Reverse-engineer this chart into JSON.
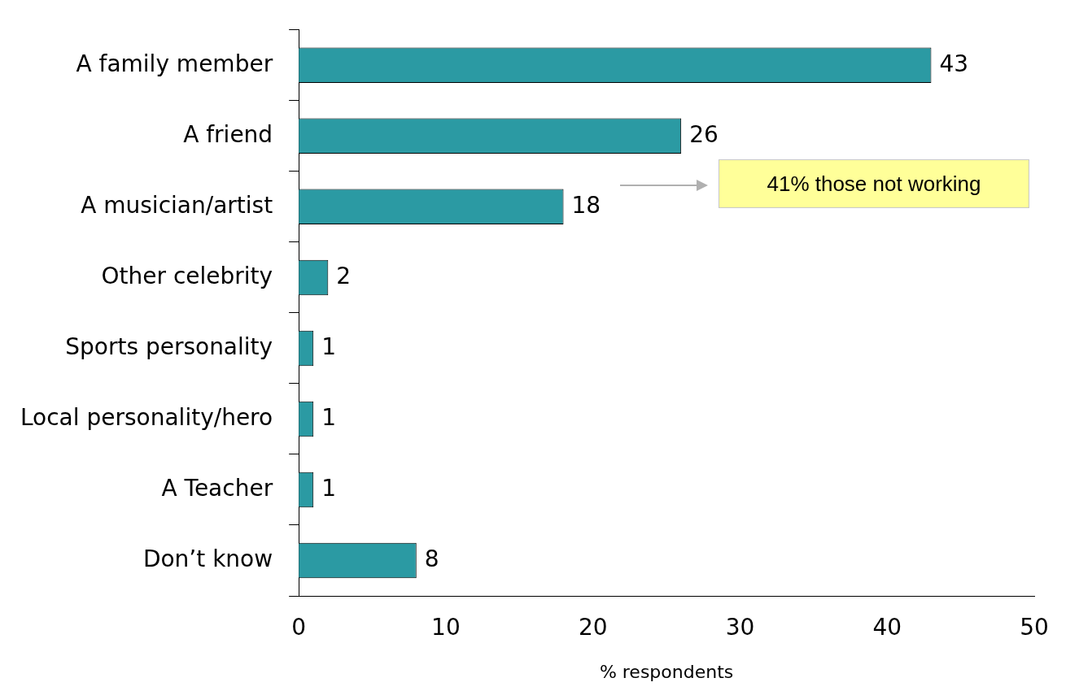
{
  "chart_data": {
    "type": "bar",
    "orientation": "horizontal",
    "categories": [
      "A family member",
      "A friend",
      "A musician/artist",
      "Other celebrity",
      "Sports personality",
      "Local personality/hero",
      "A Teacher",
      "Don’t know"
    ],
    "values": [
      43,
      26,
      18,
      2,
      1,
      1,
      1,
      8
    ],
    "color": "#2b9aa3",
    "xlim": [
      0,
      50
    ],
    "xticks": [
      0,
      10,
      20,
      30,
      40,
      50
    ],
    "xlabel": "% respondents",
    "data_labels": true,
    "grid": false,
    "legend": false,
    "annotations": [
      "41% those not working"
    ]
  }
}
